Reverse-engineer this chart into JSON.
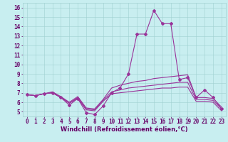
{
  "xlabel": "Windchill (Refroidissement éolien,°C)",
  "background_color": "#c8eef0",
  "grid_color": "#a0d0d0",
  "line_color": "#993399",
  "xlim": [
    -0.5,
    23.5
  ],
  "ylim": [
    4.5,
    16.5
  ],
  "yticks": [
    5,
    6,
    7,
    8,
    9,
    10,
    11,
    12,
    13,
    14,
    15,
    16
  ],
  "xticks": [
    0,
    1,
    2,
    3,
    4,
    5,
    6,
    7,
    8,
    9,
    10,
    11,
    12,
    13,
    14,
    15,
    16,
    17,
    18,
    19,
    20,
    21,
    22,
    23
  ],
  "series": [
    [
      6.8,
      6.7,
      6.9,
      7.0,
      6.5,
      5.7,
      6.4,
      4.9,
      4.7,
      5.6,
      7.0,
      7.5,
      9.0,
      13.2,
      13.2,
      15.7,
      14.3,
      14.3,
      8.4,
      8.6,
      6.5,
      7.3,
      6.5,
      5.3
    ],
    [
      6.8,
      6.7,
      6.9,
      7.1,
      6.6,
      6.0,
      6.6,
      5.4,
      5.3,
      6.3,
      7.5,
      7.8,
      8.0,
      8.2,
      8.3,
      8.5,
      8.6,
      8.7,
      8.8,
      8.9,
      6.5,
      6.5,
      6.4,
      5.5
    ],
    [
      6.8,
      6.7,
      6.9,
      7.0,
      6.5,
      5.9,
      6.5,
      5.3,
      5.2,
      6.2,
      7.1,
      7.3,
      7.5,
      7.6,
      7.7,
      7.8,
      7.9,
      8.0,
      8.1,
      8.1,
      6.3,
      6.3,
      6.2,
      5.3
    ],
    [
      6.8,
      6.7,
      6.9,
      7.0,
      6.5,
      5.9,
      6.4,
      5.2,
      5.1,
      6.1,
      6.9,
      7.0,
      7.1,
      7.2,
      7.3,
      7.4,
      7.5,
      7.5,
      7.6,
      7.6,
      6.1,
      6.1,
      6.0,
      5.1
    ]
  ],
  "fontsize_label": 6,
  "fontsize_tick": 5.5
}
